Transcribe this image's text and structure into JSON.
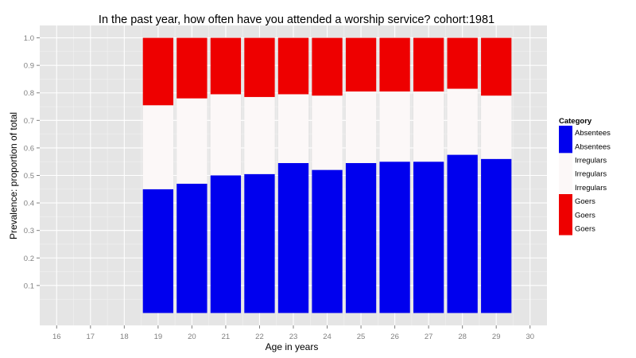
{
  "chart_data": {
    "type": "bar",
    "stacked": true,
    "title": "In the past year, how often have you attended a worship service?   cohort:1981",
    "xlabel": "Age in years",
    "ylabel": "Prevalence: proportion of total",
    "x_ticks": [
      "16",
      "17",
      "18",
      "19",
      "20",
      "21",
      "22",
      "23",
      "24",
      "25",
      "26",
      "27",
      "28",
      "29",
      "30"
    ],
    "y_ticks": [
      "0.1",
      "0.2",
      "0.3",
      "0.4",
      "0.5",
      "0.6",
      "0.7",
      "0.8",
      "0.9",
      "1.0"
    ],
    "xlim": [
      15.5,
      30.5
    ],
    "ylim": [
      -0.045,
      1.045
    ],
    "grid": true,
    "legend_position": "right",
    "categories": [
      19,
      20,
      21,
      22,
      23,
      24,
      25,
      26,
      27,
      28,
      29
    ],
    "series": [
      {
        "name": "Absentees",
        "color": "#0000EE",
        "values": [
          0.45,
          0.47,
          0.5,
          0.505,
          0.545,
          0.52,
          0.545,
          0.55,
          0.55,
          0.575,
          0.56
        ]
      },
      {
        "name": "Irregulars",
        "color": "#FCF8F8",
        "values": [
          0.305,
          0.31,
          0.295,
          0.28,
          0.25,
          0.27,
          0.26,
          0.255,
          0.255,
          0.24,
          0.23
        ]
      },
      {
        "name": "Goers",
        "color": "#EE0000",
        "values": [
          0.245,
          0.22,
          0.205,
          0.215,
          0.205,
          0.21,
          0.195,
          0.195,
          0.195,
          0.185,
          0.21
        ]
      }
    ],
    "legend": {
      "title": "Category",
      "entries": [
        {
          "series": "Absentees",
          "labels": [
            "Absentees",
            "Absentees"
          ]
        },
        {
          "series": "Irregulars",
          "labels": [
            "Irregulars",
            "Irregulars",
            "Irregulars"
          ]
        },
        {
          "series": "Goers",
          "labels": [
            "Goers",
            "Goers",
            "Goers"
          ]
        }
      ]
    },
    "colors": {
      "panel_background": "#E5E5E5",
      "grid_major": "#FFFFFF",
      "grid_minor": "#F2F2F2"
    }
  }
}
